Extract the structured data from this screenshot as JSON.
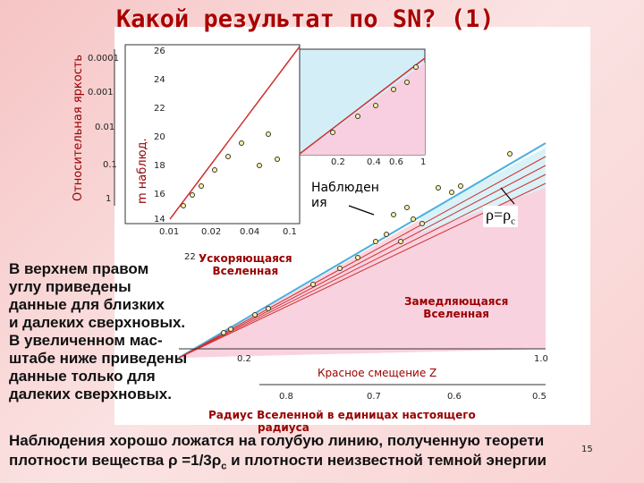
{
  "title": "Какой результат по SN? (1)",
  "upper_plot": {
    "y_label_outer": "Относительная яркость",
    "y_label_inner": "m наблюд.",
    "y_ticks_outer": [
      "0.0001",
      "0.001",
      "0.01",
      "0.1",
      "1"
    ],
    "y_ticks_inner": [
      "26",
      "24",
      "22",
      "20",
      "18",
      "16",
      "14"
    ],
    "x_ticks": [
      "0.01",
      "0.02",
      "0.04",
      "0.1"
    ],
    "inset_x_ticks": [
      "0.2",
      "0.4",
      "0.6",
      "1"
    ]
  },
  "lower_plot": {
    "annotation_observations": [
      "Наблюден",
      "ия"
    ],
    "rho_label": {
      "main": "ρ=ρ",
      "sub": "c"
    },
    "y_tick": "22",
    "accelerating": [
      "Ускоряющаяся",
      "Вселенная"
    ],
    "decelerating": [
      "Замедляющаяся",
      "Вселенная"
    ],
    "x_ticks": [
      "0.2",
      "1.0"
    ],
    "x_label": "Красное смещение Z",
    "radius_ticks": [
      "0.8",
      "0.7",
      "0.6",
      "0.5"
    ],
    "radius_label": [
      "Радиус Вселенной в единицах настоящего",
      "радиуса"
    ]
  },
  "page_number": "15",
  "body_lines": [
    "В верхнем правом",
    "углу приведены",
    "данные для  близких",
    "и далеких сверхновых.",
    "В увеличенном мас-",
    "штабе ниже приведены",
    "данные только для",
    "далеких сверхновых."
  ],
  "footer_line1": "Наблюдения хорошо ложатся на голубую линию, полученную теорети",
  "footer_line2": {
    "a": "плотности вещества ρ =1/3ρ",
    "sub": "c",
    "b": " и плотности неизвестной темной энергии"
  }
}
